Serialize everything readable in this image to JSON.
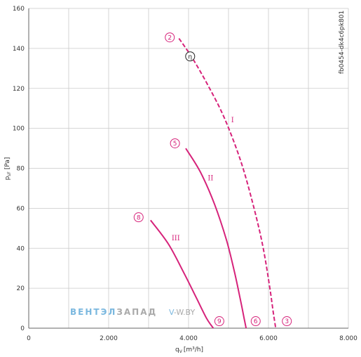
{
  "chart_data": {
    "type": "line",
    "title": "",
    "xlabel": "q",
    "xlabel_sub": "V",
    "xlabel_unit": "[m³/h]",
    "ylabel": "p",
    "ylabel_sub": "sF",
    "ylabel_unit": "[Pa]",
    "xlim": [
      0,
      8000
    ],
    "ylim": [
      0,
      160
    ],
    "xticks": [
      0,
      2000,
      4000,
      6000,
      8000
    ],
    "xtick_labels": [
      "0",
      "2.000",
      "4.000",
      "6.000",
      "8.000"
    ],
    "yticks": [
      0,
      20,
      40,
      60,
      80,
      100,
      120,
      140,
      160
    ],
    "ytick_labels": [
      "0",
      "20",
      "40",
      "60",
      "80",
      "100",
      "120",
      "140",
      "160"
    ],
    "grid": true,
    "chart_code": "fb0454-dk4c6pk801",
    "line_color": "#d6227a",
    "series": [
      {
        "name": "I",
        "style": "dashed",
        "x": [
          3760,
          4100,
          4500,
          4900,
          5300,
          5600,
          5850,
          6020,
          6120,
          6180
        ],
        "y": [
          145,
          135,
          121,
          105,
          84,
          63,
          42,
          22,
          8,
          0
        ]
      },
      {
        "name": "II",
        "style": "solid",
        "x": [
          3930,
          4300,
          4650,
          4950,
          5150,
          5300,
          5390,
          5440
        ],
        "y": [
          90,
          78,
          62,
          44,
          28,
          14,
          5,
          0
        ]
      },
      {
        "name": "III",
        "style": "solid",
        "x": [
          3050,
          3500,
          3900,
          4200,
          4450,
          4620
        ],
        "y": [
          54,
          42,
          27,
          15,
          5,
          0
        ]
      }
    ],
    "markers": [
      {
        "label": "2",
        "x": 3530,
        "y": 145.5,
        "style": "pink"
      },
      {
        "label": "η",
        "x": 4040,
        "y": 136,
        "style": "black"
      },
      {
        "label": "5",
        "x": 3660,
        "y": 92.5,
        "style": "pink"
      },
      {
        "label": "8",
        "x": 2750,
        "y": 55.5,
        "style": "pink"
      },
      {
        "label": "9",
        "x": 4770,
        "y": 3.5,
        "style": "pink"
      },
      {
        "label": "6",
        "x": 5680,
        "y": 3.5,
        "style": "pink"
      },
      {
        "label": "3",
        "x": 6460,
        "y": 3.5,
        "style": "pink"
      }
    ],
    "curve_labels": [
      {
        "label": "I",
        "x": 5100,
        "y": 103
      },
      {
        "label": "II",
        "x": 4550,
        "y": 74
      },
      {
        "label": "III",
        "x": 3680,
        "y": 44
      }
    ]
  },
  "watermark": {
    "part1": "ВЕНТЭЛ",
    "part2": "ЗАПАД",
    "part3": "V-W.BY",
    "color1": "#7bb8df",
    "color2": "#aaaaaa"
  }
}
